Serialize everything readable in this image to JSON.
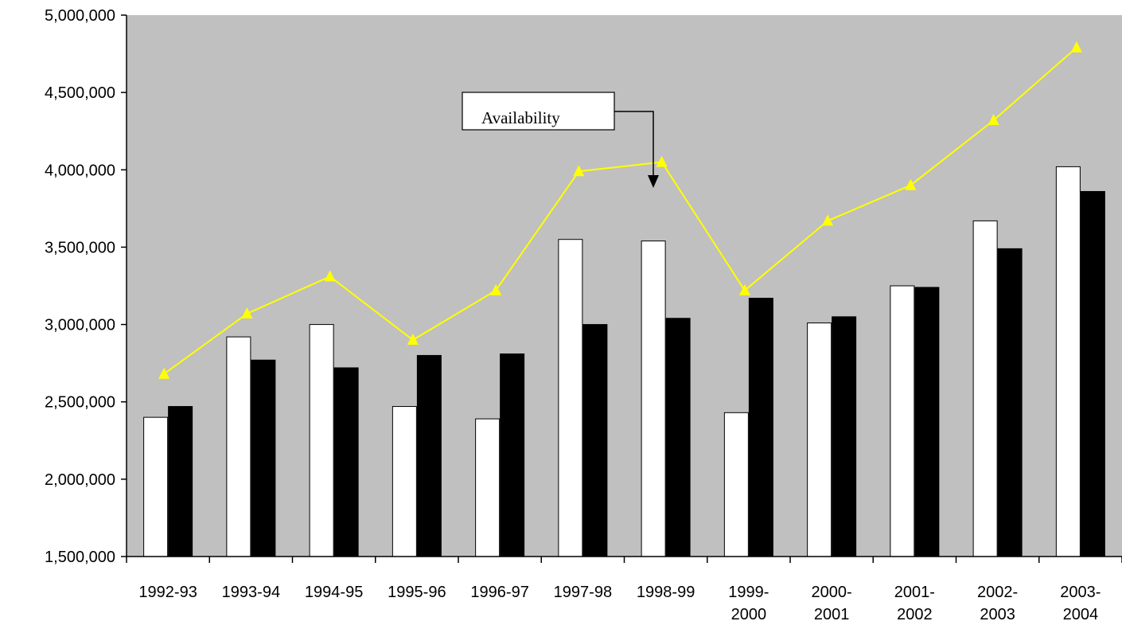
{
  "chart_data": {
    "type": "bar",
    "title": "",
    "xlabel": "",
    "ylabel": "",
    "ylim": [
      1500000,
      5000000
    ],
    "yticks": [
      1500000,
      2000000,
      2500000,
      3000000,
      3500000,
      4000000,
      4500000,
      5000000
    ],
    "ytick_labels": [
      "1,500,000",
      "2,000,000",
      "2,500,000",
      "3,000,000",
      "3,500,000",
      "4,000,000",
      "4,500,000",
      "5,000,000"
    ],
    "categories": [
      "1992-93",
      "1993-94",
      "1994-95",
      "1995-96",
      "1996-97",
      "1997-98",
      "1998-99",
      "1999-2000",
      "2000-2001",
      "2001-2002",
      "2002-2003",
      "2003-2004"
    ],
    "category_lines": [
      [
        "1992-93"
      ],
      [
        "1993-94"
      ],
      [
        "1994-95"
      ],
      [
        "1995-96"
      ],
      [
        "1996-97"
      ],
      [
        "1997-98"
      ],
      [
        "1998-99"
      ],
      [
        "1999-",
        "2000"
      ],
      [
        "2000-",
        "2001"
      ],
      [
        "2001-",
        "2002"
      ],
      [
        "2002-",
        "2003"
      ],
      [
        "2003-",
        "2004"
      ]
    ],
    "series": [
      {
        "kind": "bar",
        "color": "#ffffff",
        "values": [
          2400000,
          2920000,
          3000000,
          2470000,
          2390000,
          3550000,
          3540000,
          2430000,
          3010000,
          3250000,
          3670000,
          4020000
        ]
      },
      {
        "kind": "bar",
        "color": "#000000",
        "values": [
          2470000,
          2770000,
          2720000,
          2800000,
          2810000,
          3000000,
          3040000,
          3170000,
          3050000,
          3240000,
          3490000,
          3860000
        ]
      },
      {
        "name": "Availability",
        "kind": "line",
        "color": "#ffff00",
        "marker": "triangle",
        "values": [
          2680000,
          3070000,
          3310000,
          2900000,
          3220000,
          3990000,
          4050000,
          3220000,
          3670000,
          3900000,
          4320000,
          4790000
        ]
      }
    ],
    "plot_background": "#c0c0c0",
    "grid": false,
    "annotations": [
      {
        "text": "Availability",
        "points_to": "1998-99 line"
      }
    ]
  }
}
